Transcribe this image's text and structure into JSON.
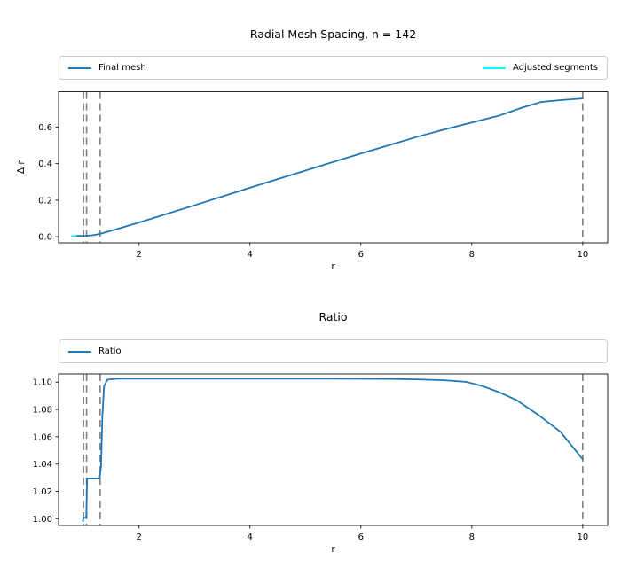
{
  "figure": {
    "background": "#ffffff",
    "text_color": "#000000",
    "spine_color": "#262626",
    "vline_color": "#7f7f7f",
    "vline_style": "dashed"
  },
  "chart_data": [
    {
      "type": "line",
      "title": "Radial Mesh Spacing, n = 142",
      "xlabel": "r",
      "ylabel": "Δ r",
      "xlim": [
        0.55,
        10.45
      ],
      "ylim": [
        -0.033,
        0.793
      ],
      "grid": false,
      "legend_position": "top full-width",
      "x_ticks": [
        2,
        4,
        6,
        8,
        10
      ],
      "x_tick_labels": [
        "2",
        "4",
        "6",
        "8",
        "10"
      ],
      "y_ticks": [
        0.0,
        0.2,
        0.4,
        0.6
      ],
      "y_tick_labels": [
        "0.0",
        "0.2",
        "0.4",
        "0.6"
      ],
      "vlines": {
        "x": [
          1.0,
          1.055,
          1.3,
          10.0
        ],
        "color": "#7f7f7f",
        "style": "dashed"
      },
      "series": [
        {
          "name": "Adjusted segments",
          "color": "#00ffff",
          "x": [
            0.79,
            1.0
          ],
          "y": [
            0.0045,
            0.0045
          ]
        },
        {
          "name": "Final mesh",
          "color": "#1f77b4",
          "x": [
            0.88,
            1.0,
            1.06,
            1.15,
            1.25,
            1.3,
            1.6,
            2.0,
            2.5,
            3.0,
            3.5,
            4.0,
            4.5,
            5.0,
            5.5,
            6.0,
            6.5,
            7.0,
            7.4,
            7.9,
            8.5,
            8.9,
            9.25,
            9.6,
            10.0
          ],
          "y": [
            0.005,
            0.005,
            0.0055,
            0.008,
            0.013,
            0.016,
            0.042,
            0.078,
            0.125,
            0.172,
            0.22,
            0.268,
            0.315,
            0.362,
            0.409,
            0.455,
            0.5,
            0.545,
            0.578,
            0.617,
            0.663,
            0.705,
            0.737,
            0.747,
            0.756
          ]
        }
      ],
      "legend": [
        {
          "label": "Final mesh",
          "color": "#1f77b4"
        },
        {
          "label": "Adjusted segments",
          "color": "#00ffff"
        }
      ]
    },
    {
      "type": "line",
      "title": "Ratio",
      "xlabel": "r",
      "ylabel": "",
      "xlim": [
        0.55,
        10.45
      ],
      "ylim": [
        0.995,
        1.106
      ],
      "grid": false,
      "legend_position": "top full-width",
      "x_ticks": [
        2,
        4,
        6,
        8,
        10
      ],
      "x_tick_labels": [
        "2",
        "4",
        "6",
        "8",
        "10"
      ],
      "y_ticks": [
        1.0,
        1.02,
        1.04,
        1.06,
        1.08,
        1.1
      ],
      "y_tick_labels": [
        "1.00",
        "1.02",
        "1.04",
        "1.06",
        "1.08",
        "1.10"
      ],
      "vlines": {
        "x": [
          1.0,
          1.055,
          1.3,
          10.0
        ],
        "color": "#7f7f7f",
        "style": "dashed"
      },
      "series": [
        {
          "name": "Ratio",
          "color": "#1f77b4",
          "x": [
            0.99,
            1.0,
            1.05,
            1.065,
            1.29,
            1.315,
            1.34,
            1.37,
            1.43,
            1.6,
            2.5,
            4.0,
            5.5,
            6.5,
            7.0,
            7.5,
            7.9,
            8.2,
            8.5,
            8.8,
            9.2,
            9.6,
            10.0
          ],
          "y": [
            0.998,
            1.0005,
            1.001,
            1.0295,
            1.0295,
            1.038,
            1.075,
            1.097,
            1.1018,
            1.1025,
            1.1025,
            1.1025,
            1.1025,
            1.1024,
            1.102,
            1.1014,
            1.1002,
            1.097,
            1.0925,
            1.087,
            1.076,
            1.0635,
            1.0435
          ]
        }
      ],
      "legend": [
        {
          "label": "Ratio",
          "color": "#1f77b4"
        }
      ]
    }
  ]
}
